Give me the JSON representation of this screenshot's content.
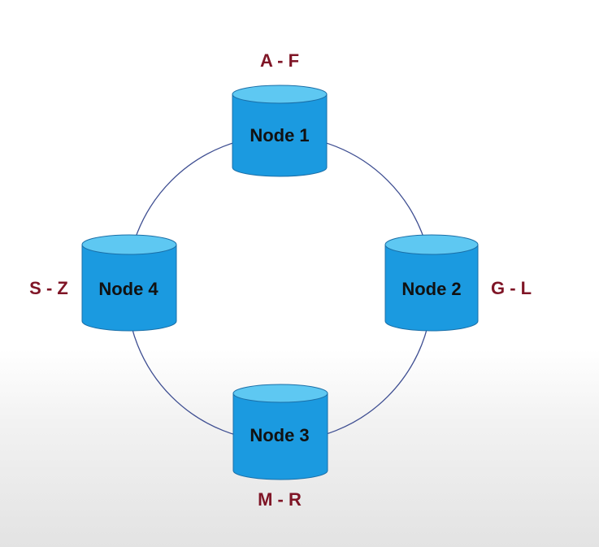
{
  "colors": {
    "ring": "#3f4f92",
    "cylinder_body": "#1b9ae0",
    "cylinder_top": "#5ec8f2",
    "cylinder_edge": "#1a6fa8",
    "node_text": "#111111",
    "range_text": "#7f1526"
  },
  "nodes": [
    {
      "label": "Node 1",
      "range": "A - F"
    },
    {
      "label": "Node 2",
      "range": "G - L"
    },
    {
      "label": "Node 3",
      "range": "M - R"
    },
    {
      "label": "Node 4",
      "range": "S - Z"
    }
  ]
}
